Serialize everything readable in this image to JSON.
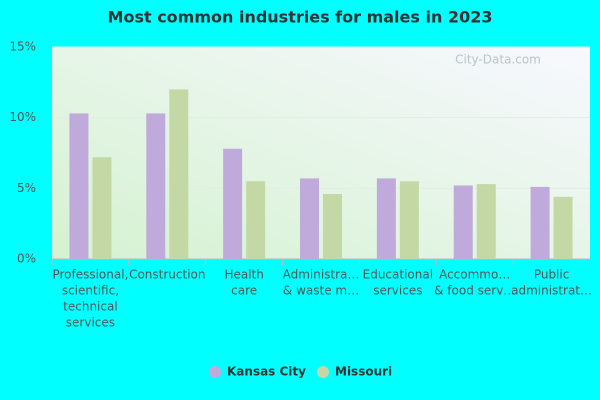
{
  "chart_data": {
    "type": "bar",
    "title": "Most common industries for males in 2023",
    "watermark": "City-Data.com",
    "categories": [
      [
        "Professional,",
        "scientific,",
        "technical",
        "services"
      ],
      [
        "Construction"
      ],
      [
        "Health",
        "care"
      ],
      [
        "Administra…",
        "& waste m…"
      ],
      [
        "Educational",
        "services"
      ],
      [
        "Accommo…",
        "& food serv…"
      ],
      [
        "Public",
        "administrat…"
      ]
    ],
    "series": [
      {
        "name": "Kansas City",
        "color": "#c0a9db",
        "values": [
          10.3,
          10.3,
          7.8,
          5.7,
          5.7,
          5.2,
          5.1
        ]
      },
      {
        "name": "Missouri",
        "color": "#c4d8a6",
        "values": [
          7.2,
          12.0,
          5.5,
          4.6,
          5.5,
          5.3,
          4.4
        ]
      }
    ],
    "ylim": [
      0,
      15
    ],
    "yticks": [
      {
        "value": 0,
        "label": "0%"
      },
      {
        "value": 5,
        "label": "5%"
      },
      {
        "value": 10,
        "label": "10%"
      },
      {
        "value": 15,
        "label": "15%"
      }
    ],
    "grid": true
  }
}
